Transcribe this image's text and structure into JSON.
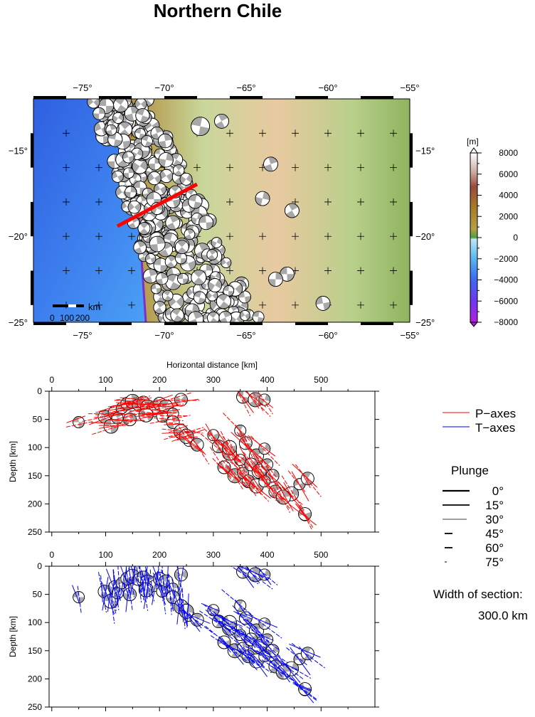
{
  "title": "Northern Chile",
  "map": {
    "lon_ticks": [
      -75,
      -70,
      -65,
      -60,
      -55
    ],
    "lat_ticks": [
      -15,
      -20,
      -25
    ],
    "degree_symbol": "°",
    "scalebar_unit": "km",
    "scalebar_labels": [
      "0",
      "100",
      "200"
    ],
    "section_line_color": "#ff0000"
  },
  "colorbar": {
    "unit": "[m]",
    "ticks": [
      8000,
      6000,
      4000,
      2000,
      0,
      -2000,
      -4000,
      -6000,
      -8000
    ]
  },
  "chart_data": [
    {
      "type": "scatter",
      "name": "P-axes cross section",
      "xlabel": "Horizontal distance [km]",
      "ylabel": "Depth [km]",
      "xlim": [
        -5,
        600
      ],
      "ylim": [
        250,
        0
      ],
      "xticks": [
        0,
        100,
        200,
        300,
        400,
        500
      ],
      "yticks": [
        0,
        50,
        100,
        150,
        200,
        250
      ],
      "axis_color": "#ff0000",
      "x": [
        50,
        98,
        118,
        130,
        140,
        150,
        160,
        170,
        178,
        190,
        200,
        212,
        225,
        240,
        110,
        122,
        145,
        175,
        205,
        225,
        240,
        255,
        270,
        250,
        300,
        310,
        330,
        350,
        360,
        380,
        395,
        320,
        340,
        355,
        370,
        385,
        400,
        410,
        330,
        350,
        365,
        380,
        395,
        415,
        445,
        460,
        475,
        430,
        470,
        355,
        378,
        395,
        470
      ],
      "y": [
        55,
        45,
        38,
        30,
        22,
        18,
        24,
        20,
        28,
        35,
        22,
        28,
        40,
        15,
        62,
        48,
        50,
        42,
        45,
        55,
        72,
        88,
        95,
        80,
        78,
        98,
        110,
        122,
        92,
        115,
        102,
        135,
        150,
        145,
        130,
        142,
        130,
        150,
        100,
        70,
        160,
        168,
        160,
        178,
        182,
        165,
        155,
        188,
        220,
        10,
        15,
        15,
        218
      ]
    },
    {
      "type": "scatter",
      "name": "T-axes cross section",
      "ylabel": "Depth [km]",
      "xlim": [
        -5,
        600
      ],
      "ylim": [
        250,
        0
      ],
      "xticks": [
        0,
        100,
        200,
        300,
        400,
        500
      ],
      "yticks": [
        0,
        50,
        100,
        150,
        200,
        250
      ],
      "axis_color": "#0000ff",
      "x": [
        50,
        98,
        118,
        130,
        140,
        150,
        160,
        170,
        178,
        190,
        200,
        212,
        225,
        240,
        110,
        122,
        145,
        175,
        205,
        225,
        240,
        255,
        270,
        250,
        300,
        310,
        330,
        350,
        360,
        380,
        395,
        320,
        340,
        355,
        370,
        385,
        400,
        410,
        330,
        350,
        365,
        380,
        395,
        415,
        445,
        460,
        475,
        430,
        470,
        355,
        378,
        395,
        470
      ],
      "y": [
        55,
        45,
        38,
        30,
        22,
        18,
        24,
        20,
        28,
        35,
        22,
        28,
        40,
        15,
        62,
        48,
        50,
        42,
        45,
        55,
        72,
        88,
        95,
        80,
        78,
        98,
        110,
        122,
        92,
        115,
        102,
        135,
        150,
        145,
        130,
        142,
        130,
        150,
        100,
        70,
        160,
        168,
        160,
        178,
        182,
        165,
        155,
        188,
        220,
        10,
        15,
        15,
        218
      ]
    }
  ],
  "legend": {
    "p_axes": "P−axes",
    "t_axes": "T−axes",
    "p_color": "#ff0000",
    "t_color": "#0000ff",
    "plunge_title": "Plunge",
    "plunge": [
      {
        "label": "0°",
        "width": 2.2
      },
      {
        "label": "15°",
        "width": 1.8
      },
      {
        "label": "30°",
        "width": 0.8
      },
      {
        "label": "45°",
        "width": 1.8
      },
      {
        "label": "60°",
        "width": 1.8
      },
      {
        "label": "75°",
        "width": 1.0
      }
    ],
    "width_label": "Width of section:",
    "width_value": "300.0 km"
  }
}
